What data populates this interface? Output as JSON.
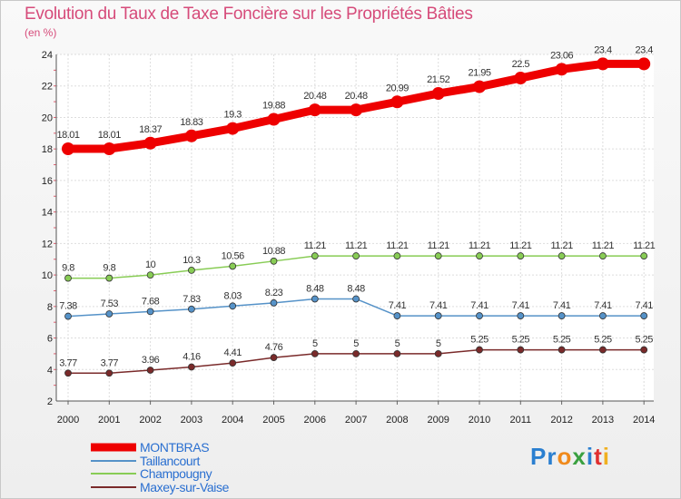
{
  "chart_data": {
    "type": "line",
    "title": "Evolution du Taux de Taxe Foncière sur les Propriétés Bâties",
    "subtitle": "(en %)",
    "x": [
      "2000",
      "2001",
      "2002",
      "2003",
      "2004",
      "2005",
      "2006",
      "2007",
      "2008",
      "2009",
      "2010",
      "2011",
      "2012",
      "2013",
      "2014"
    ],
    "ylim": [
      2,
      24
    ],
    "yticks": [
      2,
      4,
      6,
      8,
      10,
      12,
      14,
      16,
      18,
      20,
      22,
      24
    ],
    "grid": true,
    "legend_position": "bottom-left",
    "series": [
      {
        "name": "MONTBRAS",
        "color": "#ee0000",
        "values": [
          18.01,
          18.01,
          18.37,
          18.83,
          19.3,
          19.88,
          20.48,
          20.48,
          20.99,
          21.52,
          21.95,
          22.5,
          23.06,
          23.4,
          23.4
        ],
        "labels": [
          "18.01",
          "18.01",
          "18.37",
          "18.83",
          "19.3",
          "19.88",
          "20.48",
          "20.48",
          "20.99",
          "21.52",
          "21.95",
          "22.5",
          "23.06",
          "23.4",
          "23.4"
        ]
      },
      {
        "name": "Taillancourt",
        "color": "#5592c8",
        "values": [
          7.38,
          7.53,
          7.68,
          7.83,
          8.03,
          8.23,
          8.48,
          8.48,
          7.41,
          7.41,
          7.41,
          7.41,
          7.41,
          7.41,
          7.41
        ],
        "labels": [
          "7.38",
          "7.53",
          "7.68",
          "7.83",
          "8.03",
          "8.23",
          "8.48",
          "8.48",
          "7.41",
          "7.41",
          "7.41",
          "7.41",
          "7.41",
          "7.41",
          "7.41"
        ]
      },
      {
        "name": "Champougny",
        "color": "#88cc55",
        "values": [
          9.8,
          9.8,
          10,
          10.3,
          10.56,
          10.88,
          11.21,
          11.21,
          11.21,
          11.21,
          11.21,
          11.21,
          11.21,
          11.21,
          11.21
        ],
        "labels": [
          "9.8",
          "9.8",
          "10",
          "10.3",
          "10.56",
          "10.88",
          "11.21",
          "11.21",
          "11.21",
          "11.21",
          "11.21",
          "11.21",
          "11.21",
          "11.21",
          "11.21"
        ]
      },
      {
        "name": "Maxey-sur-Vaise",
        "color": "#7a2a2a",
        "values": [
          3.77,
          3.77,
          3.96,
          4.16,
          4.41,
          4.76,
          5,
          5,
          5,
          5,
          5.25,
          5.25,
          5.25,
          5.25,
          5.25
        ],
        "labels": [
          "3.77",
          "3.77",
          "3.96",
          "4.16",
          "4.41",
          "4.76",
          "5",
          "5",
          "5",
          "5",
          "5.25",
          "5.25",
          "5.25",
          "5.25",
          "5.25"
        ]
      }
    ]
  },
  "logo": {
    "text": "Proxiti"
  }
}
